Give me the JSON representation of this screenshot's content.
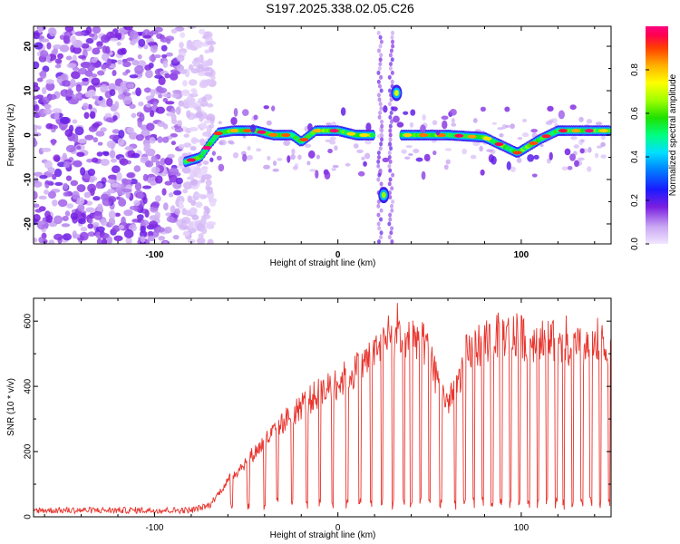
{
  "title": "S197.2025.338.02.05.C26",
  "chart_data": [
    {
      "type": "heatmap",
      "xlabel": "Height of straight line (km)",
      "ylabel": "Frequency (Hz)",
      "xlim": [
        -166,
        149
      ],
      "ylim": [
        -24.5,
        24.5
      ],
      "xticks": [
        -100,
        0,
        100
      ],
      "yticks": [
        -20,
        -10,
        0,
        10,
        20
      ],
      "xtick_labels": [
        "-100",
        "0",
        "100"
      ],
      "ytick_labels": [
        "-20",
        "-10",
        "0",
        "10",
        "20"
      ],
      "colorbar": {
        "label": "Normalized spectral amplitude",
        "range": [
          0,
          1
        ],
        "ticks": [
          0.0,
          0.2,
          0.4,
          0.6,
          0.8
        ],
        "tick_labels": [
          "0.0",
          "0.2",
          "0.4",
          "0.6",
          "0.8"
        ]
      },
      "noise_region_x": [
        -166,
        -76
      ],
      "ridge": [
        {
          "x": -83,
          "f": -6.0
        },
        {
          "x": -75,
          "f": -5.0
        },
        {
          "x": -70,
          "f": -2.0
        },
        {
          "x": -65,
          "f": 0.5
        },
        {
          "x": -57,
          "f": 1.0
        },
        {
          "x": -45,
          "f": 1.0
        },
        {
          "x": -35,
          "f": 0.0
        },
        {
          "x": -25,
          "f": 0.0
        },
        {
          "x": -20,
          "f": -1.5
        },
        {
          "x": -12,
          "f": 1.0
        },
        {
          "x": 0,
          "f": 1.0
        },
        {
          "x": 10,
          "f": 0.0
        },
        {
          "x": 20,
          "f": 0.0
        }
      ],
      "ridge2": [
        {
          "x": 35,
          "f": 0.0
        },
        {
          "x": 60,
          "f": 0.0
        },
        {
          "x": 80,
          "f": -0.5
        },
        {
          "x": 98,
          "f": -4.0
        },
        {
          "x": 110,
          "f": -1.0
        },
        {
          "x": 120,
          "f": 1.0
        },
        {
          "x": 148,
          "f": 1.0
        }
      ],
      "outliers": [
        {
          "x": 25,
          "f": -13.5,
          "amp": 0.65
        },
        {
          "x": 32,
          "f": 9.5,
          "amp": 0.7
        }
      ]
    },
    {
      "type": "line",
      "xlabel": "Height of straight line (km)",
      "ylabel": "SNR (10 * v/v)",
      "xlim": [
        -166,
        149
      ],
      "ylim": [
        0,
        670
      ],
      "xticks": [
        -100,
        0,
        100
      ],
      "yticks": [
        0,
        200,
        400,
        600
      ],
      "xtick_labels": [
        "-100",
        "0",
        "100"
      ],
      "ytick_labels": [
        "0",
        "200",
        "400",
        "600"
      ],
      "series": [
        {
          "name": "SNR",
          "color": "#e8342d",
          "envelope": [
            {
              "x": -166,
              "y": 20
            },
            {
              "x": -80,
              "y": 20
            },
            {
              "x": -70,
              "y": 35
            },
            {
              "x": -60,
              "y": 110
            },
            {
              "x": -50,
              "y": 170
            },
            {
              "x": -40,
              "y": 230
            },
            {
              "x": -30,
              "y": 290
            },
            {
              "x": -20,
              "y": 340
            },
            {
              "x": -10,
              "y": 380
            },
            {
              "x": 0,
              "y": 410
            },
            {
              "x": 10,
              "y": 450
            },
            {
              "x": 20,
              "y": 500
            },
            {
              "x": 28,
              "y": 540
            },
            {
              "x": 35,
              "y": 560
            },
            {
              "x": 42,
              "y": 560
            },
            {
              "x": 48,
              "y": 520
            },
            {
              "x": 55,
              "y": 400
            },
            {
              "x": 60,
              "y": 350
            },
            {
              "x": 65,
              "y": 400
            },
            {
              "x": 70,
              "y": 500
            },
            {
              "x": 80,
              "y": 540
            },
            {
              "x": 90,
              "y": 560
            },
            {
              "x": 100,
              "y": 550
            },
            {
              "x": 110,
              "y": 540
            },
            {
              "x": 120,
              "y": 530
            },
            {
              "x": 130,
              "y": 520
            },
            {
              "x": 140,
              "y": 510
            },
            {
              "x": 149,
              "y": 520
            }
          ],
          "dropouts": [
            -58,
            -49,
            -40,
            -33,
            -25,
            -17,
            -10,
            -3,
            5,
            12,
            18,
            24,
            30,
            36,
            40,
            45,
            50,
            56,
            64,
            69,
            74,
            79,
            84,
            89,
            94,
            99,
            104,
            109,
            114,
            119,
            123,
            128,
            133,
            138,
            143,
            148
          ]
        }
      ]
    }
  ]
}
